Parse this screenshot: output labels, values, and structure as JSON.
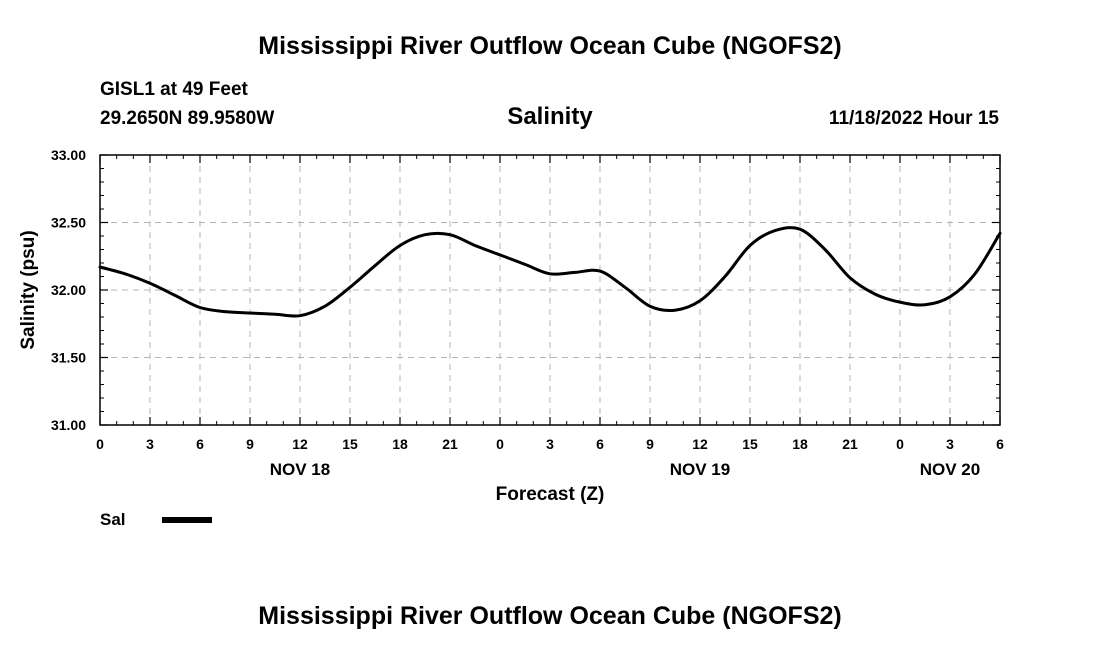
{
  "page": {
    "title": "Mississippi River Outflow Ocean Cube (NGOFS2)",
    "title_bottom": "Mississippi River Outflow Ocean Cube (NGOFS2)"
  },
  "station": {
    "name": "GISL1 at 49 Feet",
    "coords": "29.2650N  89.9580W",
    "datetime": "11/18/2022 Hour 15"
  },
  "chart_data": {
    "type": "line",
    "title": "Salinity",
    "xlabel": "Forecast (Z)",
    "ylabel": "Salinity (psu)",
    "ylim": [
      31.0,
      33.0
    ],
    "yticks": [
      "31.00",
      "31.50",
      "32.00",
      "32.50",
      "33.00"
    ],
    "xlim": [
      0,
      54
    ],
    "xticks": [
      {
        "hour": 0,
        "label": "0"
      },
      {
        "hour": 3,
        "label": "3"
      },
      {
        "hour": 6,
        "label": "6"
      },
      {
        "hour": 9,
        "label": "9"
      },
      {
        "hour": 12,
        "label": "12"
      },
      {
        "hour": 15,
        "label": "15"
      },
      {
        "hour": 18,
        "label": "18"
      },
      {
        "hour": 21,
        "label": "21"
      },
      {
        "hour": 24,
        "label": "0"
      },
      {
        "hour": 27,
        "label": "3"
      },
      {
        "hour": 30,
        "label": "6"
      },
      {
        "hour": 33,
        "label": "9"
      },
      {
        "hour": 36,
        "label": "12"
      },
      {
        "hour": 39,
        "label": "15"
      },
      {
        "hour": 42,
        "label": "18"
      },
      {
        "hour": 45,
        "label": "21"
      },
      {
        "hour": 48,
        "label": "0"
      },
      {
        "hour": 51,
        "label": "3"
      },
      {
        "hour": 54,
        "label": "6"
      }
    ],
    "day_labels": [
      {
        "hour": 12,
        "label": "NOV 18"
      },
      {
        "hour": 36,
        "label": "NOV 19"
      },
      {
        "hour": 51,
        "label": "NOV 20"
      }
    ],
    "grid": true,
    "legend": {
      "position": "bottom-left"
    },
    "series": [
      {
        "name": "Sal",
        "color": "#000000",
        "x": [
          0,
          1.5,
          3,
          4.5,
          6,
          7.5,
          9,
          10.5,
          12,
          13.5,
          15,
          16.5,
          18,
          19.5,
          21,
          22.5,
          24,
          25.5,
          27,
          28.5,
          30,
          31.5,
          33,
          34.5,
          36,
          37.5,
          39,
          40.5,
          42,
          43.5,
          45,
          46.5,
          48,
          49.5,
          51,
          52.5,
          54
        ],
        "y": [
          32.17,
          32.12,
          32.05,
          31.96,
          31.87,
          31.84,
          31.83,
          31.82,
          31.81,
          31.88,
          32.02,
          32.18,
          32.33,
          32.41,
          32.41,
          32.33,
          32.26,
          32.19,
          32.12,
          32.13,
          32.14,
          32.02,
          31.88,
          31.85,
          31.92,
          32.1,
          32.33,
          32.44,
          32.45,
          32.3,
          32.09,
          31.97,
          31.91,
          31.89,
          31.95,
          32.12,
          32.42
        ]
      }
    ]
  }
}
